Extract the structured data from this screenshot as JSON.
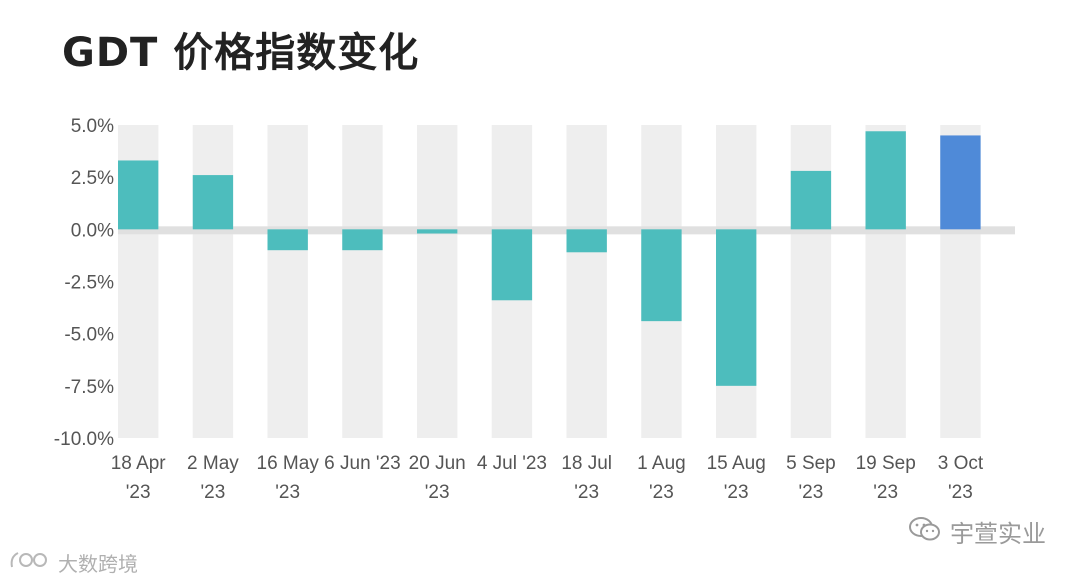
{
  "chart_data": {
    "type": "bar",
    "title": "GDT 价格指数变化",
    "categories": [
      [
        "18 Apr",
        "'23"
      ],
      [
        "2 May",
        "'23"
      ],
      [
        "16 May",
        "'23"
      ],
      [
        "6 Jun '23",
        ""
      ],
      [
        "20 Jun",
        "'23"
      ],
      [
        "4 Jul '23",
        ""
      ],
      [
        "18 Jul",
        "'23"
      ],
      [
        "1 Aug",
        "'23"
      ],
      [
        "15 Aug",
        "'23"
      ],
      [
        "5 Sep",
        "'23"
      ],
      [
        "19 Sep",
        "'23"
      ],
      [
        "3 Oct",
        "'23"
      ]
    ],
    "values": [
      3.3,
      2.6,
      -1.0,
      -1.0,
      -0.2,
      -3.4,
      -1.1,
      -4.4,
      -7.5,
      2.8,
      4.7,
      4.5
    ],
    "ylim": [
      -10.0,
      5.0
    ],
    "yticks": [
      "5.0%",
      "2.5%",
      "0.0%",
      "-2.5%",
      "-5.0%",
      "-7.5%",
      "-10.0%"
    ],
    "ytick_values": [
      5.0,
      2.5,
      0.0,
      -2.5,
      -5.0,
      -7.5,
      -10.0
    ],
    "colors": {
      "bar": "#4dbdbd",
      "highlight": "#4f8ad8",
      "band": "#eeeeee",
      "zero_line": "#e0e0e0"
    },
    "highlight_index": 11,
    "xlabel": "",
    "ylabel": "",
    "grid": "alternating vertical bands"
  },
  "watermarks": {
    "right": {
      "icon": "wechat-icon",
      "text": "宇萱实业"
    },
    "left": {
      "icon": "logo-icon",
      "text": "大数跨境"
    }
  }
}
